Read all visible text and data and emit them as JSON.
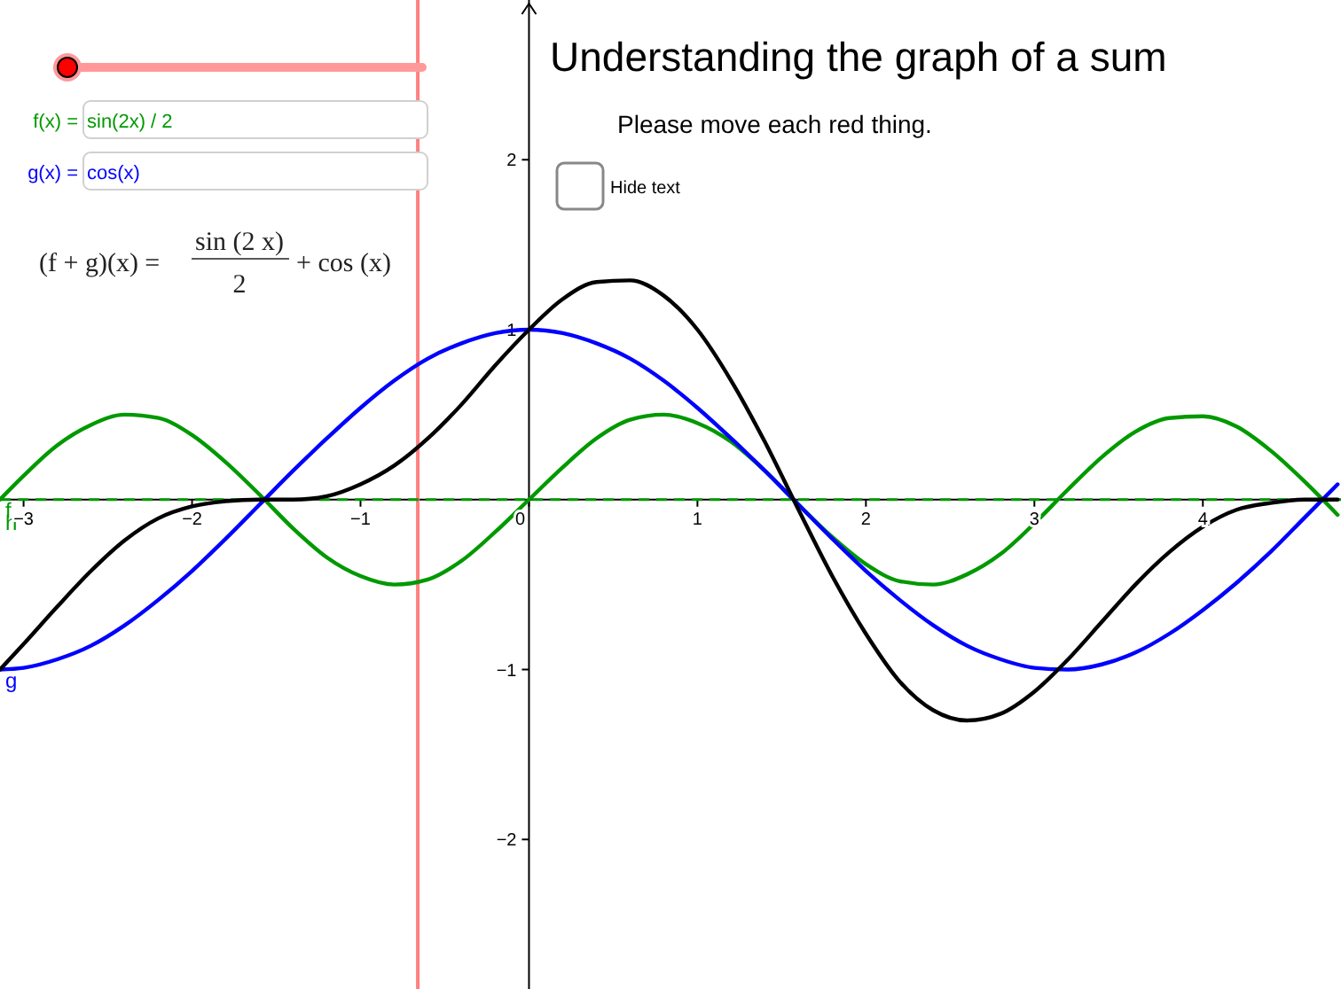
{
  "chart_data": {
    "type": "line",
    "title": "Understanding the graph of a sum",
    "subtitle": "Please move each red thing.",
    "annotations": [
      "f(x) =",
      "sin(2x) / 2",
      "g(x) =",
      "cos(x)",
      "(f + g)(x) =",
      "sin (2 x)",
      "2",
      "+ cos (x)",
      "Hide text"
    ],
    "x": [
      -3.14,
      -3.0,
      -2.8,
      -2.6,
      -2.4,
      -2.2,
      -2.0,
      -1.8,
      -1.6,
      -1.4,
      -1.2,
      -1.0,
      -0.8,
      -0.6,
      -0.4,
      -0.2,
      0,
      0.2,
      0.4,
      0.6,
      0.8,
      1.0,
      1.2,
      1.4,
      1.6,
      1.8,
      2.0,
      2.2,
      2.4,
      2.6,
      2.8,
      3.0,
      3.2,
      3.4,
      3.6,
      3.8,
      4.0,
      4.2,
      4.4,
      4.6,
      4.8
    ],
    "series": [
      {
        "name": "f",
        "color": "#009900",
        "values": [
          0.0,
          0.14,
          0.32,
          0.44,
          0.5,
          0.48,
          0.38,
          0.22,
          0.03,
          -0.17,
          -0.34,
          -0.45,
          -0.5,
          -0.47,
          -0.36,
          -0.19,
          0,
          0.19,
          0.36,
          0.47,
          0.5,
          0.45,
          0.34,
          0.17,
          -0.03,
          -0.22,
          -0.38,
          -0.48,
          -0.5,
          -0.44,
          -0.32,
          -0.14,
          0.06,
          0.25,
          0.4,
          0.48,
          0.49,
          0.43,
          0.29,
          0.11,
          -0.09
        ]
      },
      {
        "name": "g",
        "color": "#0000ff",
        "values": [
          -1.0,
          -0.99,
          -0.94,
          -0.86,
          -0.74,
          -0.59,
          -0.42,
          -0.23,
          -0.03,
          0.17,
          0.36,
          0.54,
          0.7,
          0.83,
          0.92,
          0.98,
          1.0,
          0.98,
          0.92,
          0.83,
          0.7,
          0.54,
          0.36,
          0.17,
          -0.03,
          -0.23,
          -0.42,
          -0.59,
          -0.74,
          -0.86,
          -0.94,
          -0.99,
          -1.0,
          -0.97,
          -0.9,
          -0.79,
          -0.65,
          -0.49,
          -0.31,
          -0.11,
          0.09
        ]
      },
      {
        "color": "#000000",
        "values": [
          -1.0,
          -0.85,
          -0.63,
          -0.42,
          -0.24,
          -0.11,
          -0.04,
          -0.01,
          0.0,
          0.0,
          0.02,
          0.09,
          0.2,
          0.36,
          0.56,
          0.79,
          1.0,
          1.18,
          1.28,
          1.29,
          1.2,
          1.0,
          0.7,
          0.34,
          -0.06,
          -0.45,
          -0.79,
          -1.07,
          -1.24,
          -1.3,
          -1.26,
          -1.13,
          -0.94,
          -0.72,
          -0.5,
          -0.31,
          -0.16,
          -0.06,
          -0.02,
          0.0,
          0.0
        ]
      }
    ],
    "ref_lines": [
      {
        "axis": "x",
        "value": -0.66,
        "color": "#ff8080",
        "line_style": "solid"
      },
      {
        "axis": "y",
        "value": 0,
        "label": "h",
        "color": "#009900",
        "line_style": "dashed"
      }
    ],
    "xlim": [
      -3.14,
      4.82
    ],
    "ylim": [
      -2.88,
      2.94
    ],
    "xticks": [
      -3,
      -2,
      -1,
      0,
      1,
      2,
      3,
      4
    ],
    "yticks": [
      -2,
      -1,
      1,
      2
    ],
    "grid": false,
    "marker": "none",
    "line_style": "solid"
  }
}
